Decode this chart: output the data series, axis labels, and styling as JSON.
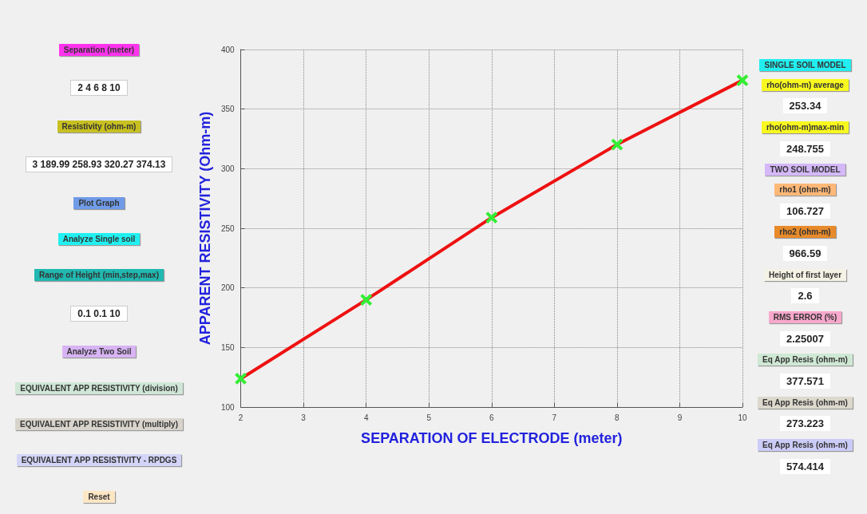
{
  "chart_data": [
    {
      "type": "other",
      "annotations": [
        "Separation (meter)",
        "2 4 6 8 10",
        "Resistivity (ohm-m)",
        "3 189.99 258.93 320.27 374.13",
        "Plot Graph",
        "Analyze Single soil",
        "Range of Height (min,step,max)",
        "0.1 0.1 10",
        "Analyze Two Soil",
        "EQUIVALENT APP RESISTIVITY (division)",
        "EQUIVALENT APP RESISTIVITY (multiply)",
        "EQUIVALENT APP RESISTIVITY - RPDGS",
        "Reset"
      ],
      "colors": [
        "#ff33ee",
        null,
        "#c8c020",
        null,
        "#6f9be8",
        "#22f0f0",
        "#20b8b0",
        null,
        "#d8b4f4",
        "#cfe6d6",
        "#d8d4cc",
        "#d4d4f8",
        "#fde6c4"
      ]
    },
    {
      "type": "line",
      "xlabel": "SEPARATION OF ELECTRODE (meter)",
      "ylabel": "APPARENT RESISTIVITY (Ohm-m)",
      "x": [
        2,
        4,
        6,
        8,
        10
      ],
      "series": [
        {
          "color": "#ee1111",
          "values": [
            123.8,
            189.99,
            258.93,
            320.27,
            374.13
          ]
        }
      ],
      "xlim": [
        2,
        10
      ],
      "xticks": [
        2,
        3,
        4,
        5,
        6,
        7,
        8,
        9,
        10
      ],
      "ylim": [
        100,
        400
      ],
      "yticks": [
        100,
        150,
        200,
        250,
        300,
        350,
        400
      ],
      "grid": true,
      "marker": "cross",
      "line_style": "solid"
    },
    {
      "type": "other",
      "annotations": [
        "SINGLE SOIL MODEL",
        "rho(ohm-m) average",
        "253.34",
        "rho(ohm-m)max-min",
        "248.755",
        "TWO SOIL MODEL",
        "rho1 (ohm-m)",
        "106.727",
        "rho2 (ohm-m)",
        "966.59",
        "Height of first layer",
        "2.6",
        "RMS ERROR (%)",
        "2.25007",
        "Eq App Resis (ohm-m)",
        "377.571",
        "Eq App Resis (ohm-m)",
        "273.223",
        "Eq App Resis (ohm-m)",
        "574.414"
      ],
      "colors": [
        "#22eef0",
        "#f8f820",
        null,
        "#f8f820",
        null,
        "#d4b8f8",
        "#ffb878",
        null,
        "#e88a2a",
        null,
        "#f4f2e4",
        null,
        "#f8a8cc",
        null,
        "#cfe8d4",
        null,
        "#dcd8cc",
        null,
        "#ccccf8",
        null
      ]
    }
  ]
}
